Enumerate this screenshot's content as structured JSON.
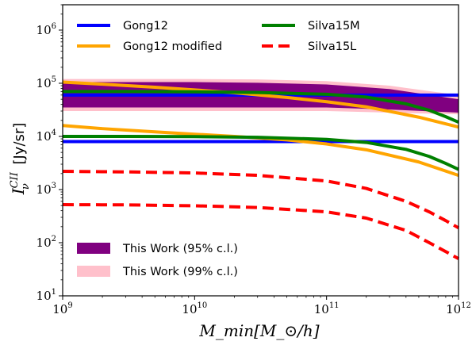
{
  "chart_data": {
    "type": "line",
    "title": "",
    "xlabel": "M_min[M_⊙/h]",
    "ylabel_symbol": "I",
    "ylabel_sub": "ν",
    "ylabel_sup": "CII",
    "ylabel_unit": "[Jy/sr]",
    "x_scale": "log",
    "y_scale": "log",
    "xlim": [
      1000000000.0,
      1000000000000.0
    ],
    "ylim": [
      10,
      3000000
    ],
    "grid": false,
    "legend_placement": "top",
    "x_ticks": [
      {
        "base": "10",
        "exp": "9",
        "value": 1000000000.0
      },
      {
        "base": "10",
        "exp": "10",
        "value": 10000000000.0
      },
      {
        "base": "10",
        "exp": "11",
        "value": 100000000000.0
      },
      {
        "base": "10",
        "exp": "12",
        "value": 1000000000000.0
      }
    ],
    "y_ticks": [
      {
        "base": "10",
        "exp": "1",
        "value": 10
      },
      {
        "base": "10",
        "exp": "2",
        "value": 100
      },
      {
        "base": "10",
        "exp": "3",
        "value": 1000
      },
      {
        "base": "10",
        "exp": "4",
        "value": 10000
      },
      {
        "base": "10",
        "exp": "5",
        "value": 100000
      },
      {
        "base": "10",
        "exp": "6",
        "value": 1000000
      }
    ],
    "bands": [
      {
        "name": "This Work (99% c.l.)",
        "color": "#ffc0cb",
        "x": [
          1000000000.0,
          10000000000.0,
          30000000000.0,
          100000000000.0,
          300000000000.0,
          1000000000000.0
        ],
        "lower": [
          30000,
          30000,
          30000,
          30000,
          28000,
          26000
        ],
        "upper": [
          120000,
          120000,
          118000,
          110000,
          90000,
          60000
        ]
      },
      {
        "name": "This Work (95% c.l.)",
        "color": "#800080",
        "x": [
          1000000000.0,
          10000000000.0,
          30000000000.0,
          100000000000.0,
          300000000000.0,
          1000000000000.0
        ],
        "lower": [
          35000,
          35000,
          35000,
          35000,
          32000,
          28000
        ],
        "upper": [
          105000,
          105000,
          102000,
          95000,
          78000,
          50000
        ]
      }
    ],
    "series": [
      {
        "name": "Gong12",
        "color": "#0000ff",
        "dash": "solid",
        "x": [
          1000000000.0,
          1000000000000.0
        ],
        "values": [
          8000,
          8000
        ]
      },
      {
        "name": "Gong12",
        "color": "#0000ff",
        "dash": "solid",
        "x": [
          1000000000.0,
          1000000000000.0
        ],
        "values": [
          60000,
          60000
        ]
      },
      {
        "name": "Gong12 modified",
        "color": "#ffa500",
        "dash": "solid",
        "x": [
          1000000000.0,
          2000000000.0,
          5000000000.0,
          10000000000.0,
          20000000000.0,
          50000000000.0,
          100000000000.0,
          200000000000.0,
          500000000000.0,
          1000000000000.0
        ],
        "values": [
          16000,
          14000,
          12200,
          11000,
          10000,
          8600,
          7200,
          5600,
          3300,
          1850
        ]
      },
      {
        "name": "Gong12 modified",
        "color": "#ffa500",
        "dash": "solid",
        "x": [
          1000000000.0,
          2000000000.0,
          5000000000.0,
          10000000000.0,
          20000000000.0,
          50000000000.0,
          100000000000.0,
          200000000000.0,
          500000000000.0,
          1000000000000.0
        ],
        "values": [
          105000,
          96000,
          84000,
          75000,
          66000,
          54000,
          45000,
          36000,
          23000,
          15000
        ]
      },
      {
        "name": "Silva15M",
        "color": "#008000",
        "dash": "solid",
        "x": [
          1000000000.0,
          3000000000.0,
          10000000000.0,
          30000000000.0,
          100000000000.0,
          200000000000.0,
          400000000000.0,
          600000000000.0,
          800000000000.0,
          1000000000000.0
        ],
        "values": [
          10000,
          10000,
          9900,
          9600,
          8800,
          7700,
          5700,
          4200,
          3100,
          2400
        ]
      },
      {
        "name": "Silva15M",
        "color": "#008000",
        "dash": "solid",
        "x": [
          1000000000.0,
          3000000000.0,
          10000000000.0,
          30000000000.0,
          100000000000.0,
          200000000000.0,
          400000000000.0,
          600000000000.0,
          800000000000.0,
          1000000000000.0
        ],
        "values": [
          70000,
          70000,
          69000,
          67000,
          62000,
          55000,
          41000,
          31000,
          23500,
          18500
        ]
      },
      {
        "name": "Silva15L",
        "color": "#ff0000",
        "dash": "dashed",
        "x": [
          1000000000.0,
          3000000000.0,
          10000000000.0,
          30000000000.0,
          100000000000.0,
          200000000000.0,
          400000000000.0,
          600000000000.0,
          800000000000.0,
          1000000000000.0
        ],
        "values": [
          2200,
          2150,
          2050,
          1850,
          1450,
          1050,
          600,
          380,
          260,
          190
        ]
      },
      {
        "name": "Silva15L",
        "color": "#ff0000",
        "dash": "dashed",
        "x": [
          1000000000.0,
          3000000000.0,
          10000000000.0,
          30000000000.0,
          100000000000.0,
          200000000000.0,
          400000000000.0,
          600000000000.0,
          800000000000.0,
          1000000000000.0
        ],
        "values": [
          520,
          515,
          495,
          460,
          380,
          290,
          170,
          100,
          68,
          50
        ]
      }
    ],
    "legend_upper": [
      {
        "label": "Gong12",
        "color": "#0000ff",
        "dash": "solid",
        "col": 0,
        "row": 0
      },
      {
        "label": "Gong12 modified",
        "color": "#ffa500",
        "dash": "solid",
        "col": 0,
        "row": 1
      },
      {
        "label": "Silva15M",
        "color": "#008000",
        "dash": "solid",
        "col": 1,
        "row": 0
      },
      {
        "label": "Silva15L",
        "color": "#ff0000",
        "dash": "dashed",
        "col": 1,
        "row": 1
      }
    ],
    "legend_lower": [
      {
        "label": "This Work (95% c.l.)",
        "color": "#800080"
      },
      {
        "label": "This Work (99% c.l.)",
        "color": "#ffc0cb"
      }
    ]
  }
}
